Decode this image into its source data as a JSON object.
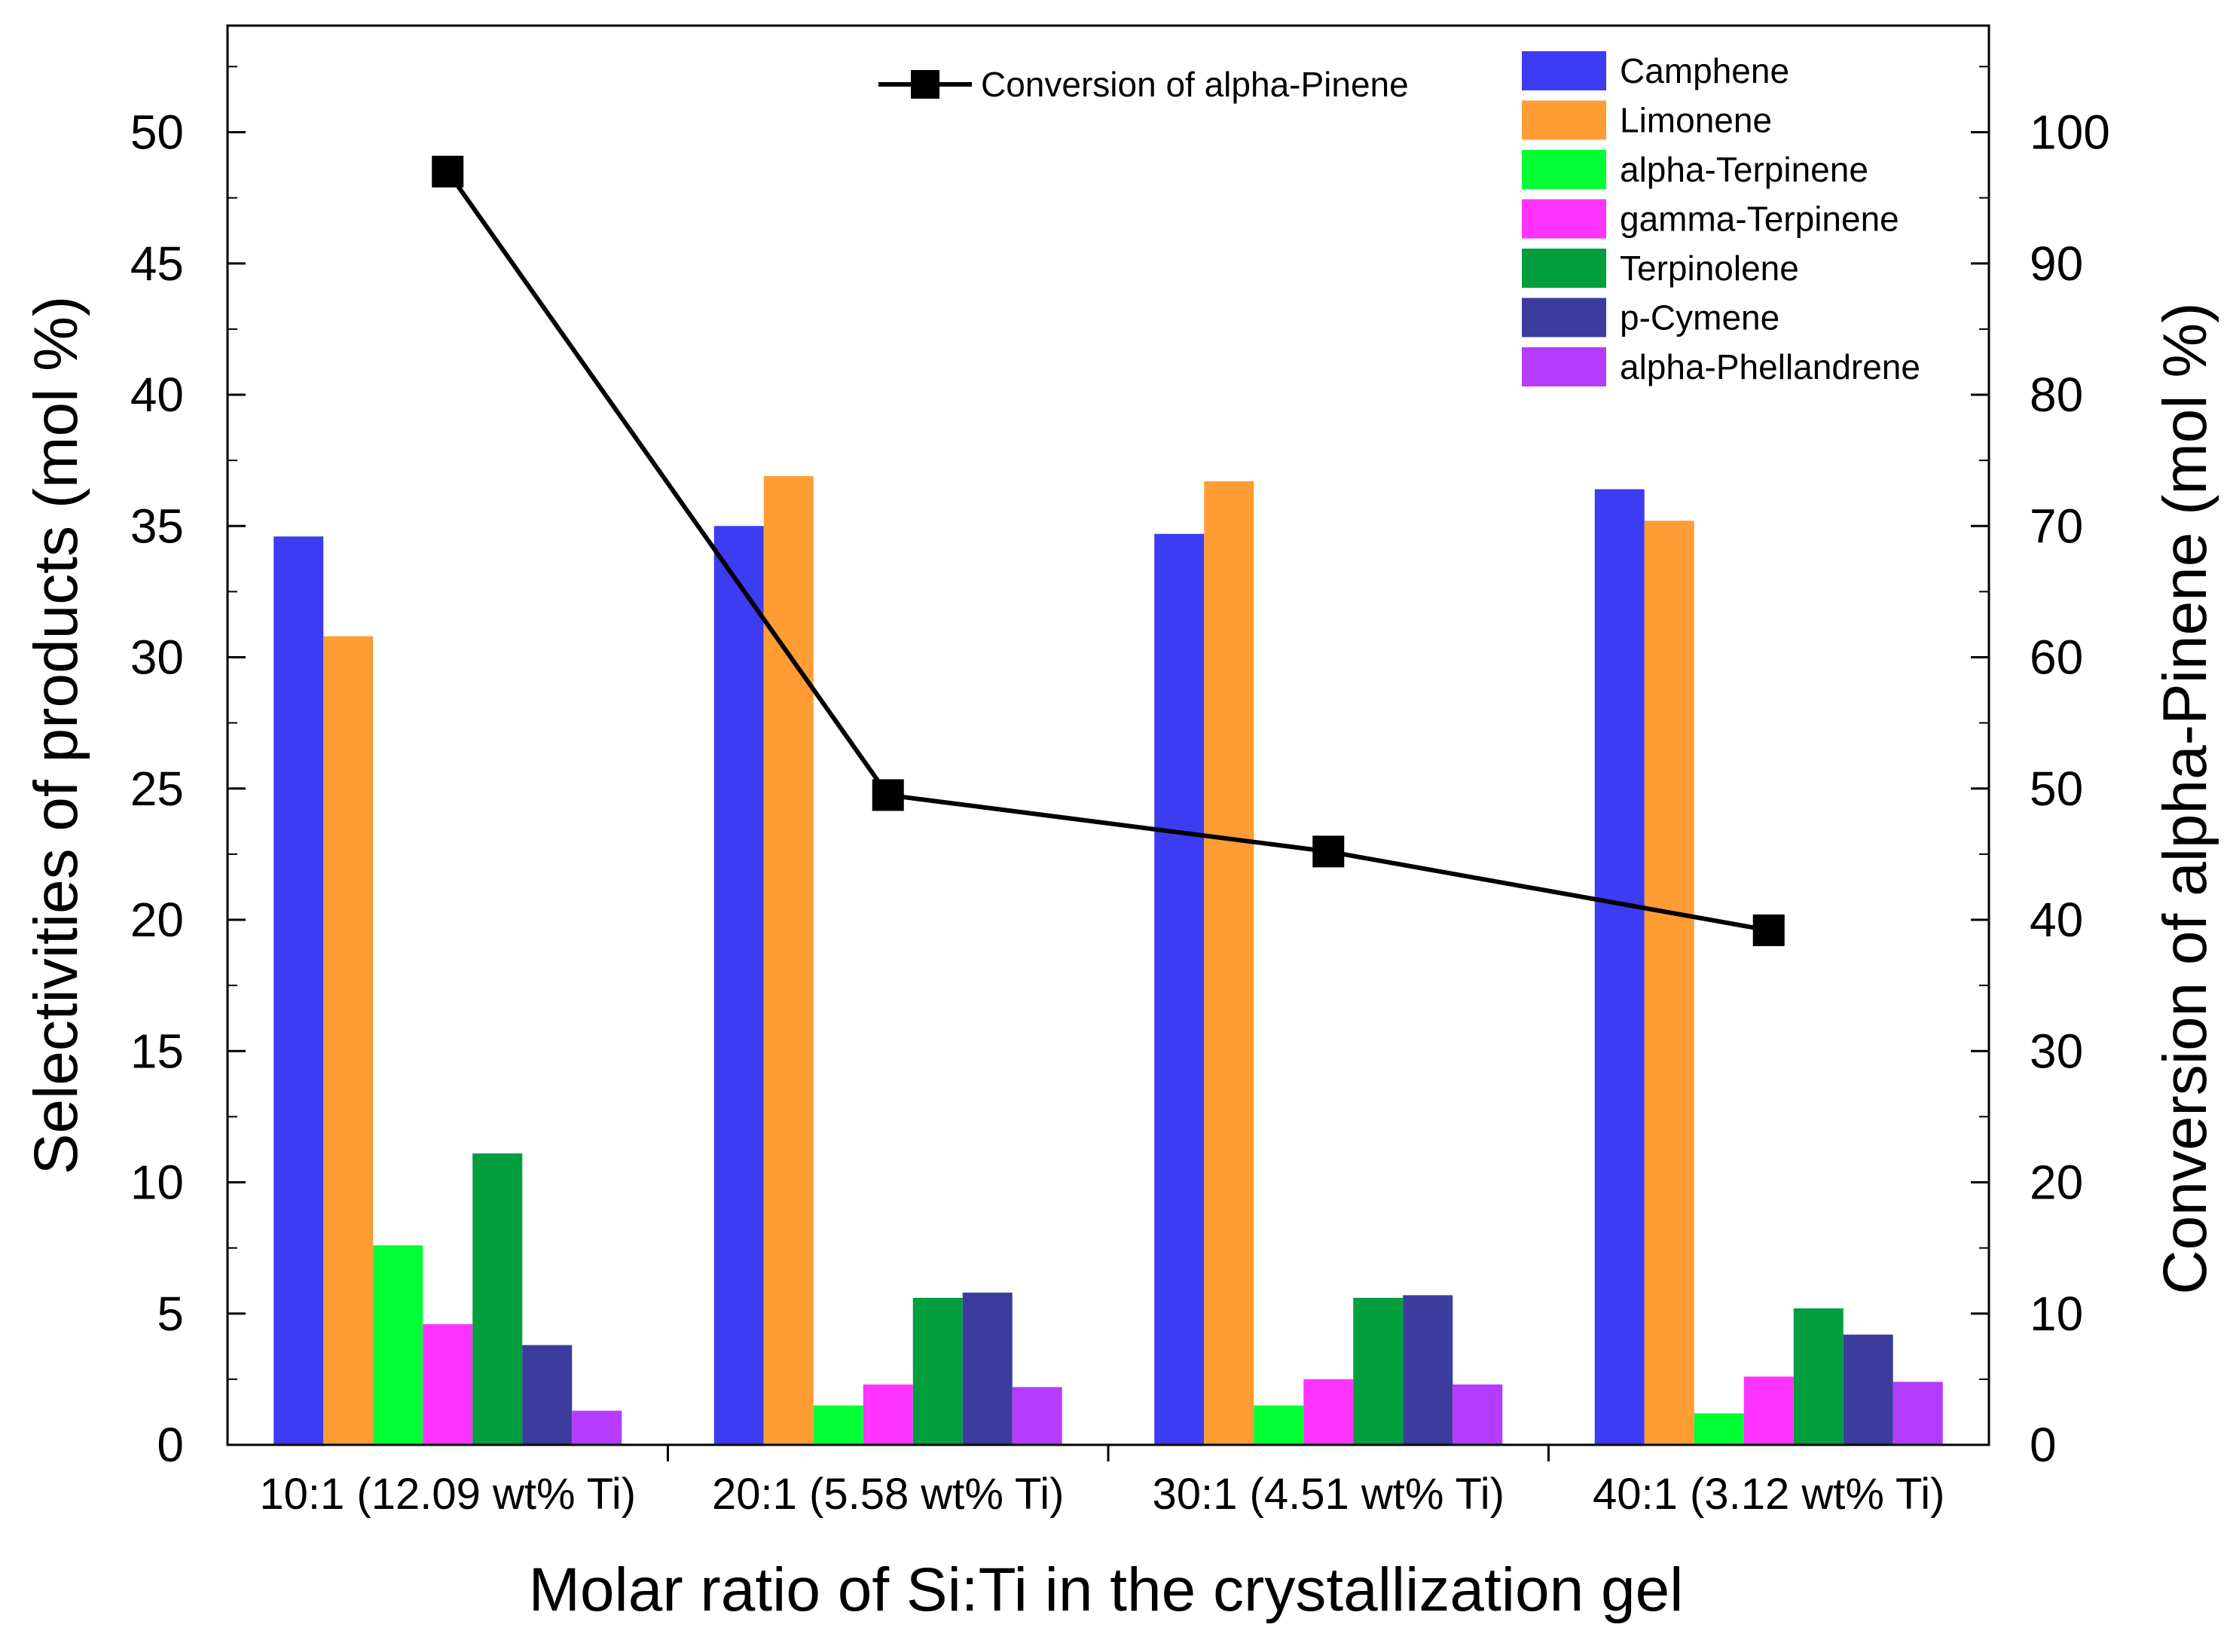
{
  "chart_data": {
    "type": "bar",
    "title": "",
    "xlabel": "Molar ratio of Si:Ti in the crystallization gel",
    "ylabel": "Selectivities of products (mol %)",
    "y2label": "Conversion of alpha-Pinene (mol %)",
    "categories": [
      "10:1 (12.09 wt% Ti)",
      "20:1 (5.58 wt% Ti)",
      "30:1 (4.51 wt% Ti)",
      "40:1 (3.12 wt% Ti)"
    ],
    "ylim": [
      0,
      54
    ],
    "y2lim": [
      0,
      108
    ],
    "yticks": [
      0,
      5,
      10,
      15,
      20,
      25,
      30,
      35,
      40,
      45,
      50
    ],
    "y2ticks": [
      0,
      10,
      20,
      30,
      40,
      50,
      60,
      70,
      80,
      90,
      100
    ],
    "series": [
      {
        "name": "Camphene",
        "color": "#3c3cf2",
        "values": [
          34.6,
          35.0,
          34.7,
          36.4
        ]
      },
      {
        "name": "Limonene",
        "color": "#ff9c33",
        "values": [
          30.8,
          36.9,
          36.7,
          35.2
        ]
      },
      {
        "name": "alpha-Terpinene",
        "color": "#00ff33",
        "values": [
          7.6,
          1.5,
          1.5,
          1.2
        ]
      },
      {
        "name": "gamma-Terpinene",
        "color": "#ff33ff",
        "values": [
          4.6,
          2.3,
          2.5,
          2.6
        ]
      },
      {
        "name": "Terpinolene",
        "color": "#009e3c",
        "values": [
          11.1,
          5.6,
          5.6,
          5.2
        ]
      },
      {
        "name": "p-Cymene",
        "color": "#3c3c9e",
        "values": [
          3.8,
          5.8,
          5.7,
          4.2
        ]
      },
      {
        "name": "alpha-Phellandrene",
        "color": "#b53cff",
        "values": [
          1.3,
          2.2,
          2.3,
          2.4
        ]
      }
    ],
    "line_series": {
      "name": "Conversion of alpha-Pinene",
      "axis": "right",
      "color": "#000000",
      "values": [
        97.0,
        49.5,
        45.2,
        39.2
      ]
    }
  }
}
